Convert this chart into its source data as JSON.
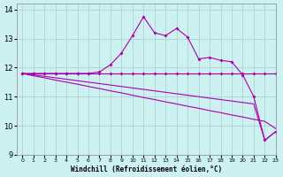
{
  "xlabel": "Windchill (Refroidissement éolien,°C)",
  "xlim": [
    -0.5,
    23
  ],
  "ylim": [
    9,
    14.2
  ],
  "yticks": [
    9,
    10,
    11,
    12,
    13,
    14
  ],
  "xticks": [
    0,
    1,
    2,
    3,
    4,
    5,
    6,
    7,
    8,
    9,
    10,
    11,
    12,
    13,
    14,
    15,
    16,
    17,
    18,
    19,
    20,
    21,
    22,
    23
  ],
  "bg_color": "#cdf0f0",
  "grid_color": "#aacccc",
  "line_color": "#aa00aa",
  "figsize": [
    3.2,
    2.0
  ],
  "dpi": 100,
  "series": {
    "line1": [
      11.8,
      11.8,
      11.8,
      11.8,
      11.8,
      11.8,
      11.8,
      11.8,
      11.8,
      11.8,
      11.8,
      11.8,
      11.8,
      11.8,
      11.8,
      11.8,
      11.8,
      11.8,
      11.8,
      11.8,
      11.8,
      11.8,
      11.8,
      11.8
    ],
    "line2": [
      11.8,
      11.8,
      11.8,
      11.8,
      11.8,
      11.8,
      11.8,
      11.85,
      12.1,
      12.5,
      13.1,
      13.75,
      13.2,
      13.1,
      13.35,
      13.05,
      12.3,
      12.35,
      12.25,
      12.2,
      11.75,
      11.0,
      9.5,
      9.8
    ],
    "line3": [
      11.8,
      11.72,
      11.65,
      11.57,
      11.5,
      11.43,
      11.35,
      11.28,
      11.2,
      11.13,
      11.05,
      10.97,
      10.9,
      10.82,
      10.75,
      10.67,
      10.6,
      10.52,
      10.45,
      10.37,
      10.3,
      10.22,
      10.15,
      9.9
    ],
    "line4": [
      11.8,
      11.75,
      11.7,
      11.65,
      11.6,
      11.55,
      11.5,
      11.45,
      11.4,
      11.35,
      11.3,
      11.25,
      11.2,
      11.15,
      11.1,
      11.05,
      11.0,
      10.95,
      10.9,
      10.85,
      10.8,
      10.75,
      9.5,
      9.8
    ]
  }
}
